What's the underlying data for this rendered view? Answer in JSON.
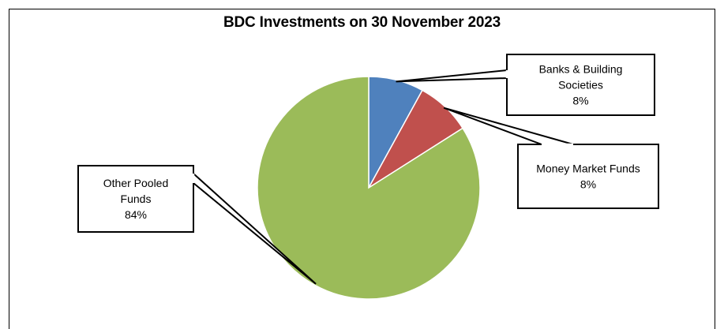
{
  "chart_data": {
    "type": "pie",
    "title": "BDC Investments on 30 November 2023",
    "slices": [
      {
        "label": "Banks & Building Societies",
        "display_label_lines": [
          "Banks & Building",
          "Societies"
        ],
        "value_label": "8%",
        "value": 8,
        "color": "#4F81BD"
      },
      {
        "label": "Money Market Funds",
        "display_label_lines": [
          "Money Market Funds"
        ],
        "value_label": "8%",
        "value": 8,
        "color": "#C0504D"
      },
      {
        "label": "Other Pooled Funds",
        "display_label_lines": [
          "Other Pooled",
          "Funds"
        ],
        "value_label": "84%",
        "value": 84,
        "color": "#9BBB59"
      }
    ],
    "start_angle_deg": 0,
    "direction": "clockwise",
    "legend": "none (callout labels)"
  },
  "colors": {
    "slice_border": "#ffffff",
    "callout_border": "#000000"
  }
}
